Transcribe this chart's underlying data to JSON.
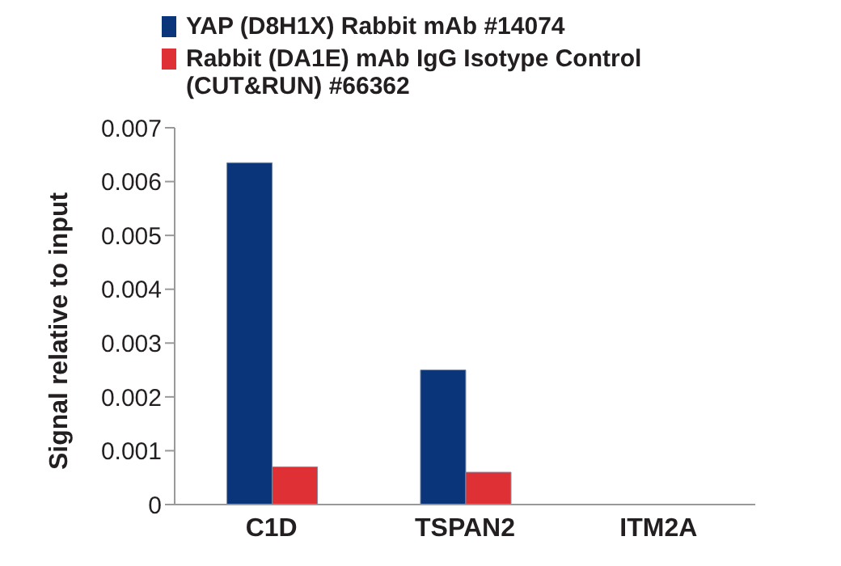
{
  "chart_data": {
    "type": "bar",
    "ylabel": "Signal relative to input",
    "categories": [
      "C1D",
      "TSPAN2",
      "ITM2A"
    ],
    "series": [
      {
        "name": "YAP (D8H1X) Rabbit mAb #14074",
        "color": "#0a357a",
        "values": [
          0.00635,
          0.0025,
          0
        ]
      },
      {
        "name": "Rabbit (DA1E) mAb IgG Isotype Control (CUT&RUN) #66362",
        "color": "#de3035",
        "values": [
          0.0007,
          0.0006,
          0
        ]
      }
    ],
    "ylim": [
      0,
      0.007
    ],
    "yticks": [
      0,
      0.001,
      0.002,
      0.003,
      0.004,
      0.005,
      0.006,
      0.007
    ],
    "grid": false,
    "legend": "top"
  }
}
